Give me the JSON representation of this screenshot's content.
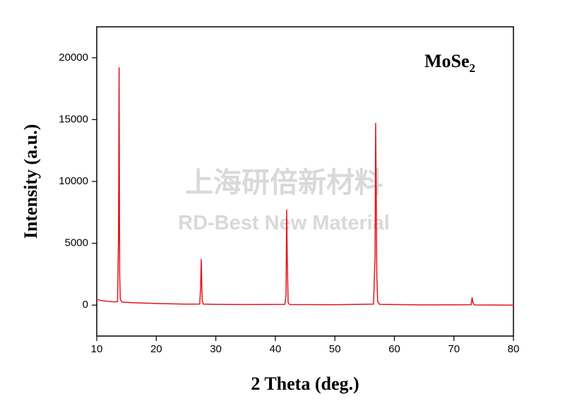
{
  "chart_data": {
    "type": "line",
    "xlabel": "2 Theta (deg.)",
    "ylabel": "Intensity (a.u.)",
    "annotation": {
      "text": "MoSe",
      "subscript": "2"
    },
    "watermark": {
      "line1": "上海研倍新材料",
      "line2": "RD-Best New Material"
    },
    "xlim": [
      10,
      80
    ],
    "xticks": [
      10,
      20,
      30,
      40,
      50,
      60,
      70,
      80
    ],
    "ylim": [
      -2500,
      22500
    ],
    "yticks": [
      0,
      5000,
      10000,
      15000,
      20000
    ],
    "grid": false,
    "series": [
      {
        "color": "#e3141b",
        "x": [
          10,
          11,
          12,
          13,
          13.5,
          13.65,
          13.75,
          13.85,
          13.95,
          14.2,
          16,
          20,
          25,
          27.3,
          27.45,
          27.55,
          27.7,
          27.9,
          30,
          35,
          41.6,
          41.8,
          41.9,
          42.0,
          42.15,
          42.4,
          50,
          56.5,
          56.75,
          56.85,
          56.95,
          57.05,
          57.2,
          57.5,
          65,
          72.9,
          73.05,
          73.2,
          73.4,
          80
        ],
        "values": [
          450,
          350,
          300,
          260,
          280,
          5400,
          19200,
          2500,
          500,
          250,
          200,
          130,
          80,
          90,
          1500,
          3700,
          400,
          80,
          60,
          50,
          60,
          800,
          7700,
          3900,
          200,
          50,
          30,
          80,
          3900,
          14700,
          9000,
          2300,
          300,
          60,
          20,
          30,
          600,
          200,
          20,
          0
        ]
      }
    ]
  }
}
